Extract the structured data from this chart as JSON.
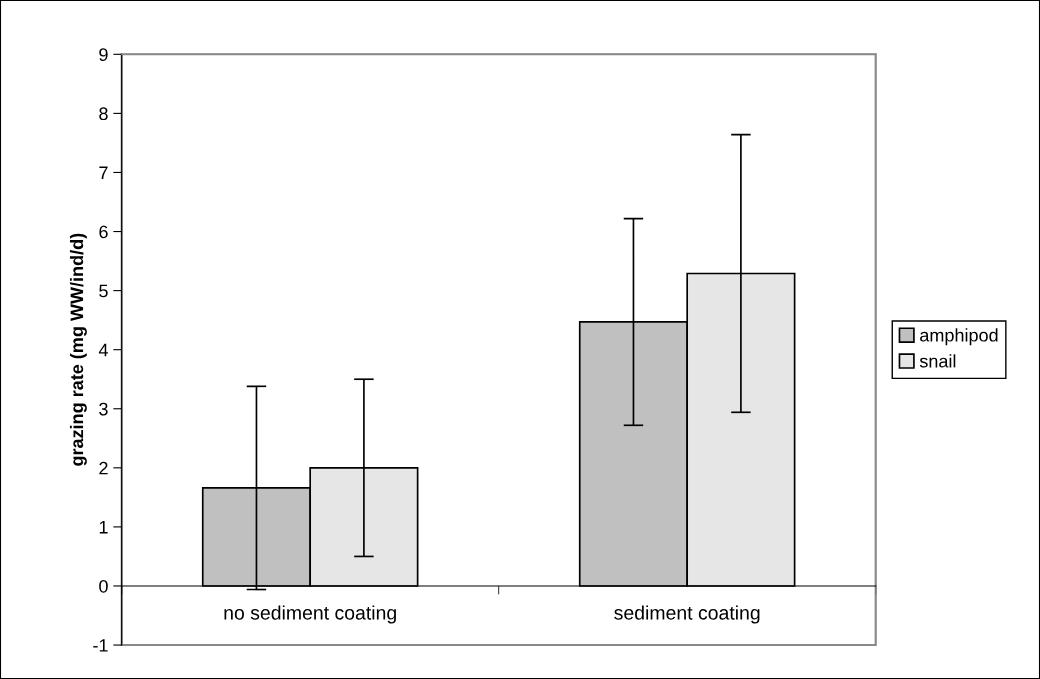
{
  "chart_data": {
    "type": "bar",
    "ylabel": "grazing rate (mg WW/ind/d)",
    "categories": [
      "no sediment coating",
      "sediment coating"
    ],
    "series": [
      {
        "name": "amphipod",
        "color": "#c0c0c0",
        "values": [
          1.66,
          4.47
        ],
        "errors": [
          1.72,
          1.75
        ]
      },
      {
        "name": "snail",
        "color": "#e6e6e6",
        "values": [
          2.0,
          5.29
        ],
        "errors": [
          1.5,
          2.35
        ]
      }
    ],
    "ylim": [
      -1,
      9
    ],
    "yticks": [
      -1,
      0,
      1,
      2,
      3,
      4,
      5,
      6,
      7,
      8,
      9
    ],
    "grid": false,
    "legend": "right"
  }
}
